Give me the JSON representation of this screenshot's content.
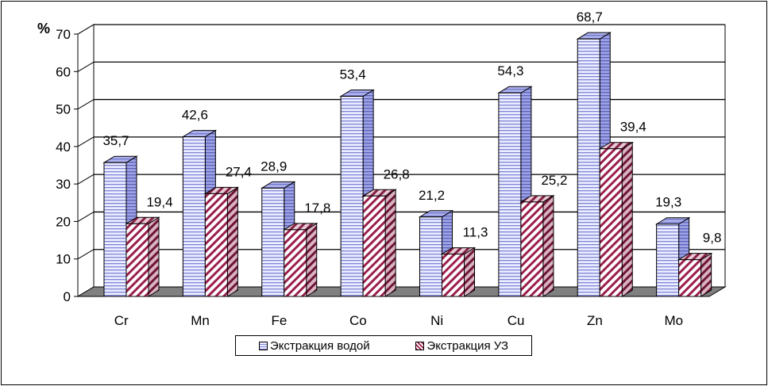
{
  "chart_data": {
    "type": "bar",
    "unit_label": "%",
    "categories": [
      "Cr",
      "Mn",
      "Fe",
      "Co",
      "Ni",
      "Cu",
      "Zn",
      "Mo"
    ],
    "series": [
      {
        "name": "Экстракция водой",
        "values": [
          35.7,
          42.6,
          28.9,
          53.4,
          21.2,
          54.3,
          68.7,
          19.3
        ],
        "labels": [
          "35,7",
          "42,6",
          "28,9",
          "53,4",
          "21,2",
          "54,3",
          "68,7",
          "19,3"
        ],
        "color": "#d6d8ff",
        "pattern": "horizontal-lines"
      },
      {
        "name": "Экстракция УЗ",
        "values": [
          19.4,
          27.4,
          17.8,
          26.8,
          11.3,
          25.2,
          39.4,
          9.8
        ],
        "labels": [
          "19,4",
          "27,4",
          "17,8",
          "26,8",
          "11,3",
          "25,2",
          "39,4",
          "9,8"
        ],
        "color": "#9c1f4c",
        "pattern": "diagonal-lines"
      }
    ],
    "yticks": [
      "0",
      "10",
      "20",
      "30",
      "40",
      "50",
      "60",
      "70"
    ],
    "ylim": [
      0,
      70
    ],
    "grid": true,
    "view": "3d",
    "floor_color": "#808080",
    "legend_position": "bottom"
  }
}
